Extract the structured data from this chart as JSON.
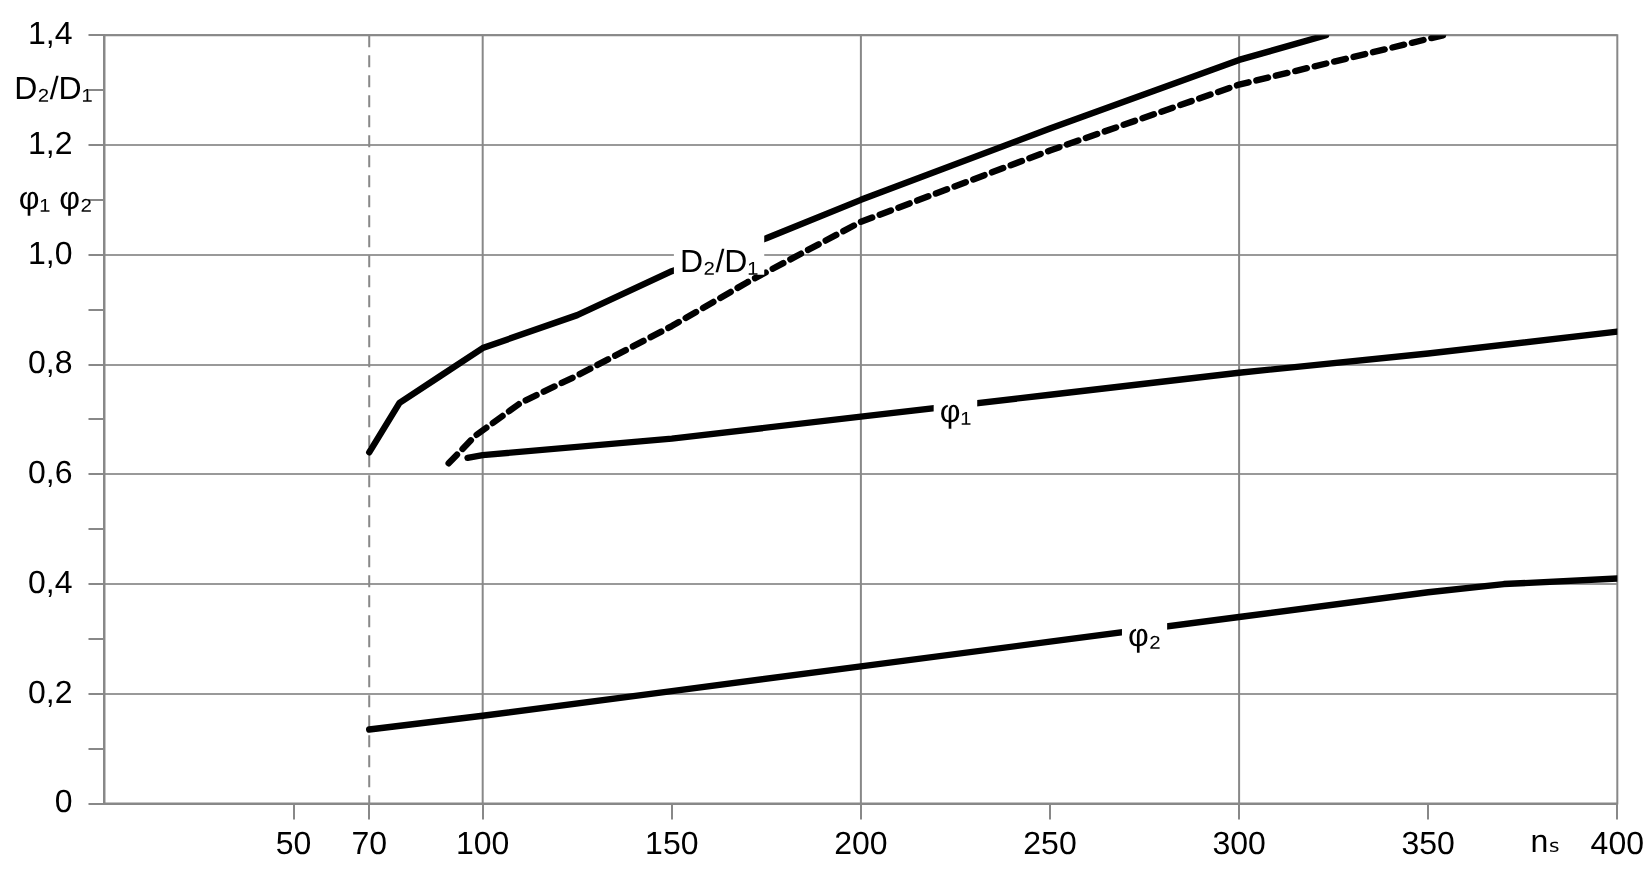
{
  "chart_data": {
    "type": "line",
    "ylabel": "D₂/D₁",
    "xlabel": "nₛ",
    "annotations": [
      "φ₁ φ₂"
    ],
    "xlim": [
      0,
      400
    ],
    "xticks": [
      50,
      70,
      100,
      150,
      200,
      250,
      300,
      350,
      400
    ],
    "ylim": [
      0,
      1.4
    ],
    "yticks": [
      0,
      {
        "value": 0.1,
        "label": null
      },
      {
        "value": 0.2,
        "label": "0,2"
      },
      {
        "value": 0.3,
        "label": null
      },
      {
        "value": 0.4,
        "label": "0,4"
      },
      {
        "value": 0.5,
        "label": null
      },
      {
        "value": 0.6,
        "label": "0,6"
      },
      {
        "value": 0.7,
        "label": null
      },
      {
        "value": 0.8,
        "label": "0,8"
      },
      {
        "value": 0.9,
        "label": null
      },
      {
        "value": 1.0,
        "label": "1,0"
      },
      {
        "value": 1.1,
        "label": null
      },
      {
        "value": 1.2,
        "label": "1,2"
      },
      {
        "value": 1.3,
        "label": null
      },
      {
        "value": 1.4,
        "label": "1,4"
      }
    ],
    "grid": "y",
    "legend": false,
    "line_style": "solid",
    "ref_lines": [
      {
        "axis": "x",
        "value": 70,
        "line_style": "dashed",
        "color": "#888888"
      },
      {
        "axis": "x",
        "value": 100,
        "color": "#888888"
      },
      {
        "axis": "x",
        "value": 200,
        "color": "#888888"
      },
      {
        "axis": "x",
        "value": 300,
        "color": "#888888"
      }
    ],
    "series": [
      {
        "name": "D₂/D₁",
        "color": "#000000",
        "x": [
          70,
          78,
          89,
          100,
          125,
          150,
          175,
          200,
          250,
          300,
          323
        ],
        "values": [
          0.64,
          0.73,
          0.78,
          0.83,
          0.89,
          0.97,
          1.03,
          1.1,
          1.23,
          1.355,
          1.4
        ]
      },
      {
        "color": "#000000",
        "line_style": "dashed",
        "x": [
          91,
          98,
          110,
          125,
          150,
          170,
          200,
          250,
          300,
          354
        ],
        "values": [
          0.62,
          0.67,
          0.73,
          0.78,
          0.87,
          0.95,
          1.06,
          1.19,
          1.31,
          1.4
        ]
      },
      {
        "name": "φ₁",
        "color": "#000000",
        "x": [
          96,
          100,
          150,
          200,
          250,
          300,
          350,
          400
        ],
        "values": [
          0.63,
          0.635,
          0.665,
          0.705,
          0.745,
          0.785,
          0.82,
          0.86
        ]
      },
      {
        "name": "φ₂",
        "color": "#000000",
        "x": [
          70,
          100,
          150,
          200,
          250,
          300,
          350,
          370,
          400
        ],
        "values": [
          0.135,
          0.16,
          0.205,
          0.25,
          0.295,
          0.34,
          0.385,
          0.4,
          0.41
        ]
      }
    ]
  }
}
